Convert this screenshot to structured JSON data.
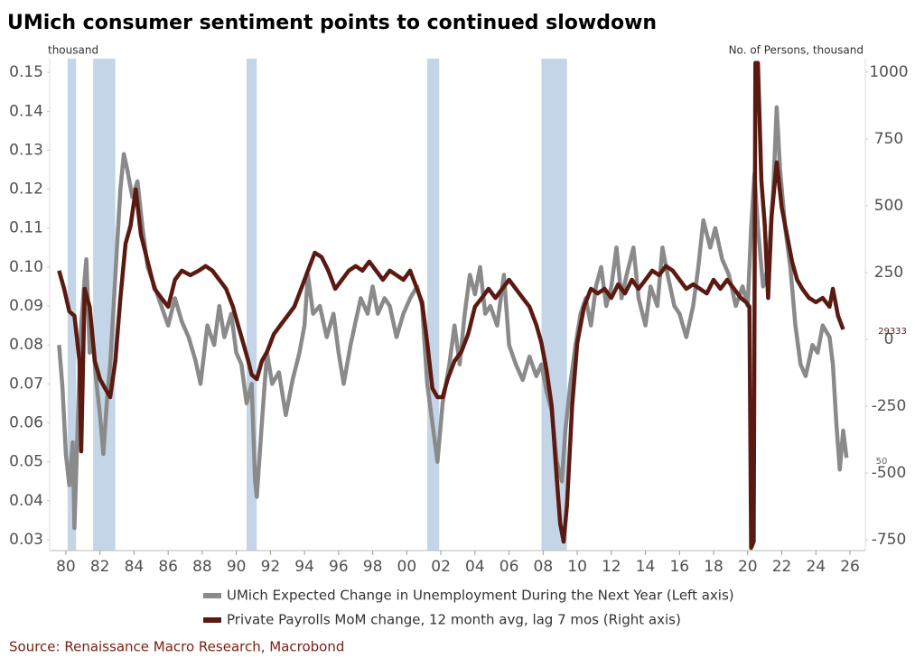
{
  "chart_data": {
    "type": "line",
    "title": "UMich consumer sentiment points to continued slowdown",
    "ylabel": "thousand",
    "y2label": "No. of Persons, thousand",
    "source": "Source: Renaissance Macro Research, Macrobond",
    "annotations": [
      "29333",
      "50"
    ],
    "xlim": [
      1979.05,
      2026.9
    ],
    "xticks": [
      {
        "value": 1980,
        "label": "80"
      },
      {
        "value": 1982,
        "label": "82"
      },
      {
        "value": 1984,
        "label": "84"
      },
      {
        "value": 1986,
        "label": "86"
      },
      {
        "value": 1988,
        "label": "88"
      },
      {
        "value": 1990,
        "label": "90"
      },
      {
        "value": 1992,
        "label": "92"
      },
      {
        "value": 1994,
        "label": "94"
      },
      {
        "value": 1996,
        "label": "96"
      },
      {
        "value": 1998,
        "label": "98"
      },
      {
        "value": 2000,
        "label": "00"
      },
      {
        "value": 2002,
        "label": "02"
      },
      {
        "value": 2004,
        "label": "04"
      },
      {
        "value": 2006,
        "label": "06"
      },
      {
        "value": 2008,
        "label": "08"
      },
      {
        "value": 2010,
        "label": "10"
      },
      {
        "value": 2012,
        "label": "12"
      },
      {
        "value": 2014,
        "label": "14"
      },
      {
        "value": 2016,
        "label": "16"
      },
      {
        "value": 2018,
        "label": "18"
      },
      {
        "value": 2020,
        "label": "20"
      },
      {
        "value": 2022,
        "label": "22"
      },
      {
        "value": 2024,
        "label": "24"
      },
      {
        "value": 2026,
        "label": "26"
      }
    ],
    "ylim": [
      0.0272,
      0.1535
    ],
    "yticks": [
      0.03,
      0.04,
      0.05,
      0.06,
      0.07,
      0.08,
      0.09,
      {
        "value": 0.1,
        "label": "0.10"
      },
      0.11,
      0.12,
      0.13,
      0.14,
      0.15
    ],
    "y2lim": [
      -790,
      1050
    ],
    "y2ticks": [
      -750,
      -500,
      -250,
      0,
      250,
      500,
      750,
      1000
    ],
    "recession_color": "#c5d5e8",
    "recessions": [
      [
        1980.1,
        1980.6
      ],
      [
        1981.6,
        1982.9
      ],
      [
        1990.6,
        1991.2
      ],
      [
        2001.2,
        2001.9
      ],
      [
        2007.9,
        2009.4
      ]
    ],
    "series": [
      {
        "name": "UMich Expected Change in Unemployment During the Next Year (Left axis)",
        "color": "#8a8a8a",
        "x": [
          1979.6,
          1979.8,
          1980.0,
          1980.2,
          1980.4,
          1980.5,
          1980.7,
          1980.9,
          1981.1,
          1981.2,
          1981.4,
          1981.6,
          1981.8,
          1982.0,
          1982.2,
          1982.4,
          1982.6,
          1982.8,
          1983.0,
          1983.2,
          1983.4,
          1983.6,
          1983.9,
          1984.2,
          1984.5,
          1984.8,
          1985.2,
          1985.6,
          1986.0,
          1986.4,
          1986.8,
          1987.2,
          1987.6,
          1987.9,
          1988.3,
          1988.7,
          1989.0,
          1989.3,
          1989.7,
          1990.0,
          1990.3,
          1990.6,
          1990.9,
          1991.1,
          1991.2,
          1991.5,
          1991.8,
          1992.1,
          1992.5,
          1992.9,
          1993.3,
          1993.7,
          1994.0,
          1994.2,
          1994.5,
          1994.9,
          1995.3,
          1995.7,
          1996.0,
          1996.3,
          1996.7,
          1997.0,
          1997.3,
          1997.7,
          1998.0,
          1998.3,
          1998.7,
          1999.0,
          1999.4,
          1999.8,
          2000.2,
          2000.6,
          2000.9,
          2001.2,
          2001.5,
          2001.8,
          2002.1,
          2002.5,
          2002.8,
          2003.1,
          2003.4,
          2003.7,
          2004.0,
          2004.3,
          2004.6,
          2004.9,
          2005.3,
          2005.7,
          2006.0,
          2006.4,
          2006.8,
          2007.2,
          2007.6,
          2007.9,
          2008.2,
          2008.5,
          2008.8,
          2009.1,
          2009.3,
          2009.6,
          2009.9,
          2010.2,
          2010.5,
          2010.8,
          2011.1,
          2011.4,
          2011.7,
          2012.0,
          2012.3,
          2012.6,
          2012.9,
          2013.3,
          2013.6,
          2014.0,
          2014.3,
          2014.7,
          2015.0,
          2015.3,
          2015.7,
          2016.0,
          2016.4,
          2016.8,
          2017.1,
          2017.4,
          2017.8,
          2018.1,
          2018.5,
          2018.9,
          2019.3,
          2019.7,
          2020.0,
          2020.2,
          2020.4,
          2020.6,
          2020.9,
          2021.2,
          2021.5,
          2021.7,
          2021.9,
          2022.2,
          2022.5,
          2022.8,
          2023.1,
          2023.4,
          2023.8,
          2024.1,
          2024.4,
          2024.8,
          2025.0,
          2025.2,
          2025.4,
          2025.6,
          2025.8
        ],
        "values": [
          0.08,
          0.069,
          0.052,
          0.044,
          0.055,
          0.033,
          0.06,
          0.085,
          0.097,
          0.102,
          0.078,
          0.08,
          0.07,
          0.062,
          0.052,
          0.065,
          0.075,
          0.09,
          0.105,
          0.12,
          0.129,
          0.125,
          0.118,
          0.122,
          0.11,
          0.1,
          0.095,
          0.09,
          0.085,
          0.092,
          0.086,
          0.082,
          0.076,
          0.07,
          0.085,
          0.08,
          0.09,
          0.082,
          0.088,
          0.078,
          0.075,
          0.065,
          0.07,
          0.045,
          0.041,
          0.06,
          0.078,
          0.07,
          0.073,
          0.062,
          0.071,
          0.078,
          0.085,
          0.098,
          0.088,
          0.09,
          0.082,
          0.088,
          0.078,
          0.07,
          0.08,
          0.086,
          0.092,
          0.088,
          0.095,
          0.088,
          0.092,
          0.09,
          0.082,
          0.088,
          0.092,
          0.095,
          0.09,
          0.07,
          0.06,
          0.05,
          0.065,
          0.075,
          0.085,
          0.075,
          0.088,
          0.098,
          0.093,
          0.1,
          0.088,
          0.09,
          0.085,
          0.098,
          0.08,
          0.075,
          0.071,
          0.077,
          0.072,
          0.075,
          0.068,
          0.063,
          0.05,
          0.045,
          0.058,
          0.07,
          0.08,
          0.088,
          0.092,
          0.085,
          0.095,
          0.1,
          0.09,
          0.095,
          0.105,
          0.092,
          0.098,
          0.105,
          0.092,
          0.085,
          0.095,
          0.09,
          0.105,
          0.098,
          0.09,
          0.088,
          0.082,
          0.09,
          0.1,
          0.112,
          0.105,
          0.11,
          0.102,
          0.098,
          0.09,
          0.095,
          0.09,
          0.11,
          0.124,
          0.11,
          0.095,
          0.1,
          0.12,
          0.141,
          0.125,
          0.11,
          0.1,
          0.085,
          0.075,
          0.072,
          0.08,
          0.078,
          0.085,
          0.082,
          0.075,
          0.06,
          0.048,
          0.058,
          0.051
        ]
      },
      {
        "name": "Private Payrolls MoM change, 12 month avg, lag 7 mos (Right axis)",
        "color": "#5a1a12",
        "axis": "y2",
        "x": [
          1979.6,
          1979.9,
          1980.2,
          1980.5,
          1980.8,
          1980.9,
          1981.1,
          1981.4,
          1981.7,
          1982.0,
          1982.3,
          1982.6,
          1982.9,
          1983.2,
          1983.5,
          1983.8,
          1984.1,
          1984.4,
          1984.8,
          1985.2,
          1985.6,
          1986.0,
          1986.4,
          1986.8,
          1987.3,
          1987.8,
          1988.2,
          1988.6,
          1989.0,
          1989.4,
          1989.8,
          1990.1,
          1990.4,
          1990.7,
          1990.9,
          1991.2,
          1991.5,
          1991.8,
          1992.2,
          1992.6,
          1993.0,
          1993.4,
          1993.8,
          1994.2,
          1994.6,
          1995.0,
          1995.4,
          1995.8,
          1996.2,
          1996.6,
          1997.0,
          1997.4,
          1997.8,
          1998.2,
          1998.6,
          1999.0,
          1999.4,
          1999.8,
          2000.2,
          2000.6,
          2000.9,
          2001.2,
          2001.5,
          2001.8,
          2002.1,
          2002.4,
          2002.8,
          2003.2,
          2003.6,
          2004.0,
          2004.4,
          2004.8,
          2005.2,
          2005.6,
          2006.0,
          2006.4,
          2006.8,
          2007.2,
          2007.6,
          2007.9,
          2008.2,
          2008.5,
          2008.8,
          2009.0,
          2009.2,
          2009.4,
          2009.7,
          2010.0,
          2010.4,
          2010.8,
          2011.2,
          2011.6,
          2012.0,
          2012.4,
          2012.8,
          2013.2,
          2013.6,
          2014.0,
          2014.4,
          2014.8,
          2015.2,
          2015.6,
          2016.0,
          2016.4,
          2016.8,
          2017.2,
          2017.6,
          2018.0,
          2018.4,
          2018.8,
          2019.2,
          2019.6,
          2019.9,
          2020.1,
          2020.2,
          2020.35,
          2020.45,
          2020.6,
          2020.8,
          2021.0,
          2021.2,
          2021.4,
          2021.7,
          2022.0,
          2022.3,
          2022.6,
          2022.9,
          2023.2,
          2023.6,
          2024.0,
          2024.4,
          2024.8,
          2025.0,
          2025.3,
          2025.6
        ],
        "values": [
          257,
          189,
          105,
          88,
          -81,
          -419,
          189,
          122,
          -81,
          -149,
          -183,
          -216,
          -81,
          155,
          358,
          426,
          561,
          392,
          291,
          189,
          155,
          122,
          223,
          257,
          240,
          257,
          274,
          257,
          223,
          189,
          122,
          54,
          -13,
          -81,
          -132,
          -149,
          -81,
          -47,
          20,
          54,
          88,
          122,
          189,
          257,
          324,
          308,
          257,
          189,
          223,
          257,
          274,
          257,
          291,
          257,
          223,
          257,
          240,
          223,
          257,
          189,
          139,
          -13,
          -183,
          -216,
          -216,
          -149,
          -81,
          -47,
          20,
          122,
          155,
          189,
          155,
          189,
          223,
          189,
          155,
          122,
          54,
          -13,
          -115,
          -250,
          -520,
          -689,
          -757,
          -621,
          -250,
          -13,
          122,
          189,
          172,
          189,
          155,
          206,
          172,
          223,
          189,
          223,
          257,
          240,
          274,
          257,
          223,
          189,
          206,
          189,
          172,
          223,
          189,
          223,
          189,
          155,
          139,
          122,
          -780,
          -757,
          1034,
          1034,
          595,
          426,
          155,
          459,
          662,
          493,
          392,
          291,
          223,
          189,
          155,
          139,
          155,
          122,
          189,
          88,
          37
        ]
      }
    ]
  }
}
